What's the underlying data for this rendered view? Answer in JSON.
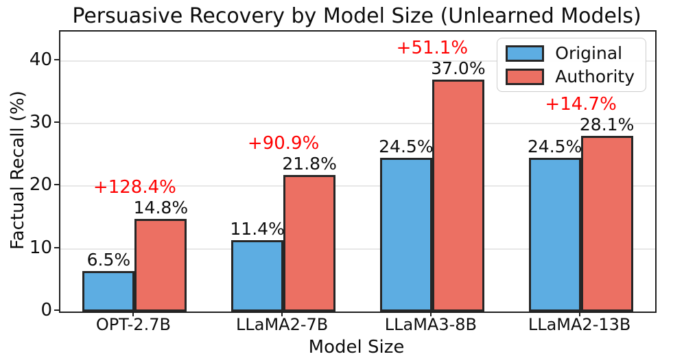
{
  "title": "Persuasive Recovery by Model Size (Unlearned Models)",
  "chart_data": {
    "type": "bar",
    "title": "Persuasive Recovery by Model Size (Unlearned Models)",
    "xlabel": "Model Size",
    "ylabel": "Factual Recall (%)",
    "categories": [
      "OPT-2.7B",
      "LLaMA2-7B",
      "LLaMA3-8B",
      "LLaMA2-13B"
    ],
    "series": [
      {
        "name": "Original",
        "color": "#5DADE2",
        "values": [
          6.5,
          11.4,
          24.5,
          24.5
        ],
        "labels": [
          "6.5%",
          "11.4%",
          "24.5%",
          "24.5%"
        ]
      },
      {
        "name": "Authority",
        "color": "#EC7063",
        "values": [
          14.8,
          21.8,
          37.0,
          28.1
        ],
        "labels": [
          "14.8%",
          "21.8%",
          "37.0%",
          "28.1%"
        ]
      }
    ],
    "change_labels": [
      "+128.4%",
      "+90.9%",
      "+51.1%",
      "+14.7%"
    ],
    "change_color": "#ff0000",
    "yticks": [
      0,
      10,
      20,
      30,
      40
    ],
    "ylim": [
      0,
      44.7
    ],
    "grid": true,
    "legend_position": "upper right",
    "bar_edge_color": "#262626",
    "grid_color": "#e7e7e7"
  }
}
